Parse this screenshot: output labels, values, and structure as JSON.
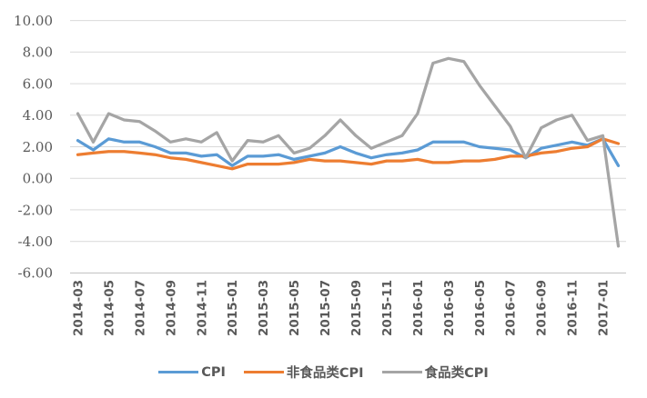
{
  "chart_data": {
    "type": "line",
    "title": "",
    "categories": [
      "2014-03",
      "2014-04",
      "2014-05",
      "2014-06",
      "2014-07",
      "2014-08",
      "2014-09",
      "2014-10",
      "2014-11",
      "2014-12",
      "2015-01",
      "2015-02",
      "2015-03",
      "2015-04",
      "2015-05",
      "2015-06",
      "2015-07",
      "2015-08",
      "2015-09",
      "2015-10",
      "2015-11",
      "2015-12",
      "2016-01",
      "2016-02",
      "2016-03",
      "2016-04",
      "2016-05",
      "2016-06",
      "2016-07",
      "2016-08",
      "2016-09",
      "2016-10",
      "2016-11",
      "2016-12",
      "2017-01",
      "2017-02"
    ],
    "x_tick_every": 2,
    "x_tick_labels": [
      "2014-03",
      "2014-05",
      "2014-07",
      "2014-09",
      "2014-11",
      "2015-01",
      "2015-03",
      "2015-05",
      "2015-07",
      "2015-09",
      "2015-11",
      "2016-01",
      "2016-03",
      "2016-05",
      "2016-07",
      "2016-09",
      "2016-11",
      "2017-01"
    ],
    "ylim": [
      -6,
      10
    ],
    "y_ticks": [
      10,
      8,
      6,
      4,
      2,
      0,
      -2,
      -4,
      -6
    ],
    "y_tick_labels": [
      "10.00",
      "8.00",
      "6.00",
      "4.00",
      "2.00",
      "0.00",
      "-2.00",
      "-4.00",
      "-6.00"
    ],
    "grid": "horizontal",
    "legend_position": "bottom",
    "colors": {
      "background": "#FFFFFF",
      "grid": "#D9D9D9",
      "axis_line": "#BFBFBF",
      "tick_label": "#595959"
    },
    "series": [
      {
        "key": "cpi",
        "name": "CPI",
        "color": "#5B9BD5",
        "values": [
          2.4,
          1.8,
          2.5,
          2.3,
          2.3,
          2.0,
          1.6,
          1.6,
          1.4,
          1.5,
          0.8,
          1.4,
          1.4,
          1.5,
          1.2,
          1.4,
          1.6,
          2.0,
          1.6,
          1.3,
          1.5,
          1.6,
          1.8,
          2.3,
          2.3,
          2.3,
          2.0,
          1.9,
          1.8,
          1.3,
          1.9,
          2.1,
          2.3,
          2.1,
          2.5,
          0.8
        ]
      },
      {
        "key": "non-food-cpi",
        "name": "非食品类CPI",
        "color": "#ED7D31",
        "values": [
          1.5,
          1.6,
          1.7,
          1.7,
          1.6,
          1.5,
          1.3,
          1.2,
          1.0,
          0.8,
          0.6,
          0.9,
          0.9,
          0.9,
          1.0,
          1.2,
          1.1,
          1.1,
          1.0,
          0.9,
          1.1,
          1.1,
          1.2,
          1.0,
          1.0,
          1.1,
          1.1,
          1.2,
          1.4,
          1.4,
          1.6,
          1.7,
          1.9,
          2.0,
          2.5,
          2.2
        ]
      },
      {
        "key": "food-cpi",
        "name": "食品类CPI",
        "color": "#A5A5A5",
        "values": [
          4.1,
          2.3,
          4.1,
          3.7,
          3.6,
          3.0,
          2.3,
          2.5,
          2.3,
          2.9,
          1.1,
          2.4,
          2.3,
          2.7,
          1.6,
          1.9,
          2.7,
          3.7,
          2.7,
          1.9,
          2.3,
          2.7,
          4.1,
          7.3,
          7.6,
          7.4,
          5.9,
          4.6,
          3.3,
          1.3,
          3.2,
          3.7,
          4.0,
          2.4,
          2.7,
          -4.3
        ]
      }
    ]
  }
}
